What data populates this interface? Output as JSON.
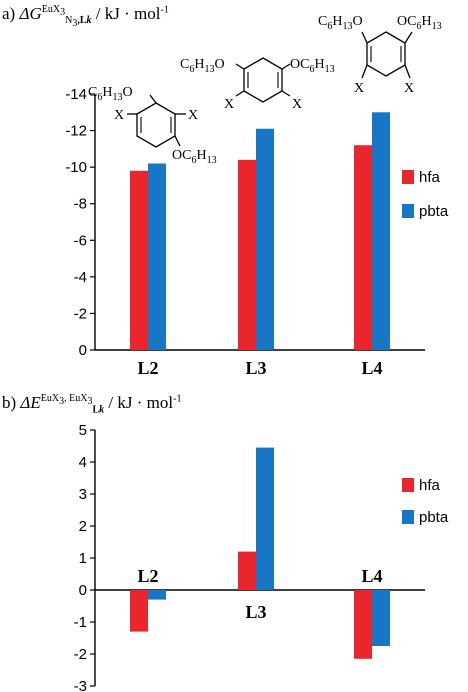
{
  "panel_a": {
    "label": "a)",
    "symbol": "ΔG",
    "sup": "EuX",
    "sup_sub": "3",
    "sub_n": "N",
    "sub_n3": "3",
    "sub_l": ",L",
    "sub_k": "k",
    "unit": "/ kJ · mol",
    "unit_exp": "-1"
  },
  "panel_b": {
    "label": "b)",
    "symbol": "ΔE",
    "sup": "EuX",
    "sup_sub1": "3",
    "sup_mid": ", EuX",
    "sup_sub2": "3",
    "sub_l": "L",
    "sub_k": "k",
    "unit": "/ kJ · mol",
    "unit_exp": "-1"
  },
  "structures": {
    "hexyl": "C6H13",
    "o_hexyl_left": "C6H13O",
    "o_hexyl_right": "OC6H13",
    "x": "X"
  },
  "colors": {
    "hfa": "#e8262b",
    "pbta": "#1777c6"
  },
  "chart_data": [
    {
      "type": "bar",
      "title": "",
      "xlabel": "",
      "ylabel": "ΔG(EuX3; N3,Lk) / kJ·mol-1",
      "categories": [
        "L2",
        "L3",
        "L4"
      ],
      "series": [
        {
          "name": "hfa",
          "values": [
            -9.8,
            -10.4,
            -11.2
          ]
        },
        {
          "name": "pbta",
          "values": [
            -10.2,
            -12.1,
            -13.0
          ]
        }
      ],
      "ylim": [
        0,
        -14
      ],
      "yticks": [
        0,
        -2,
        -4,
        -6,
        -8,
        -10,
        -12,
        -14
      ],
      "ytick_labels": [
        "0",
        "-2",
        "-4",
        "-6",
        "-8",
        "-10",
        "-12",
        "-14"
      ],
      "legend": "right",
      "grid": false
    },
    {
      "type": "bar",
      "title": "",
      "xlabel": "",
      "ylabel": "ΔE(EuX3, EuX3; Lk) / kJ·mol-1",
      "categories": [
        "L2",
        "L3",
        "L4"
      ],
      "series": [
        {
          "name": "hfa",
          "values": [
            -1.3,
            1.2,
            -2.15
          ]
        },
        {
          "name": "pbta",
          "values": [
            -0.3,
            4.45,
            -1.75
          ]
        }
      ],
      "ylim": [
        -3,
        5
      ],
      "yticks": [
        5,
        4,
        3,
        2,
        1,
        0,
        -1,
        -2,
        -3
      ],
      "ytick_labels": [
        "5",
        "4",
        "3",
        "2",
        "1",
        "0",
        "-1",
        "-2",
        "-3"
      ],
      "legend": "right",
      "grid": false
    }
  ]
}
